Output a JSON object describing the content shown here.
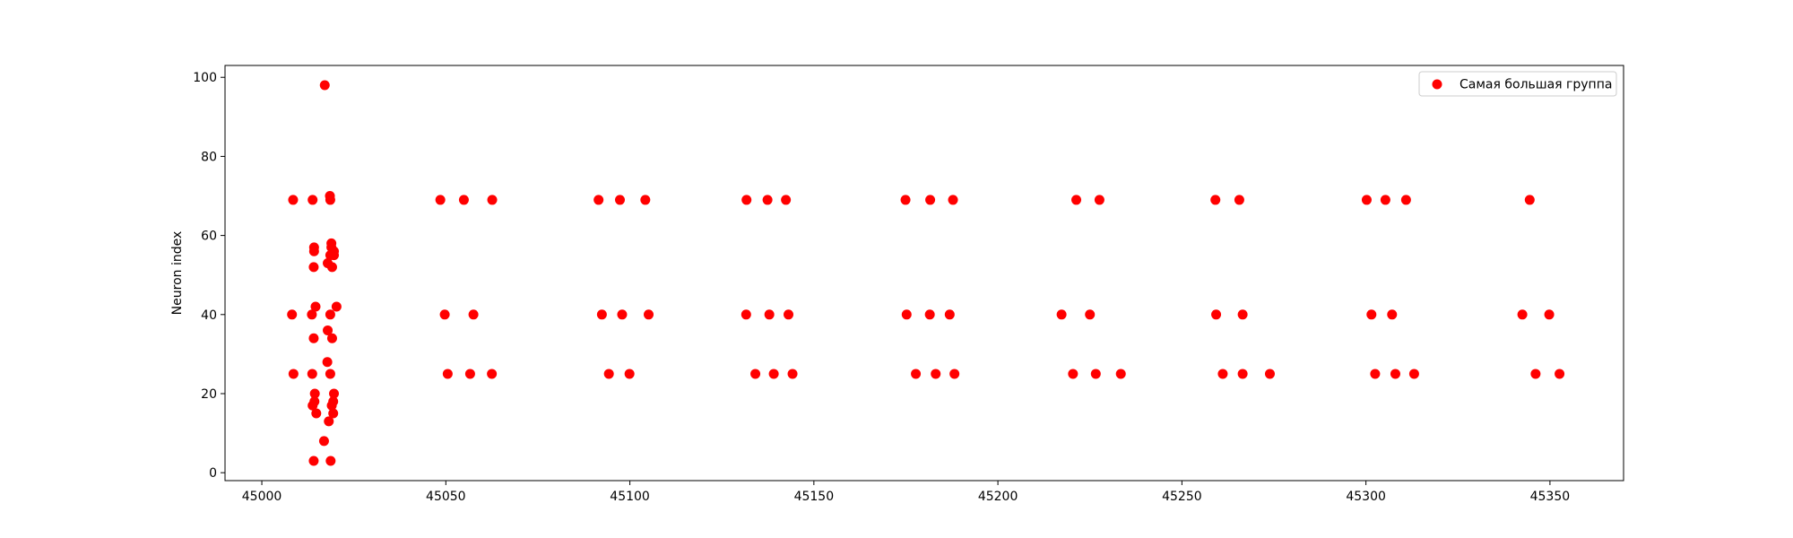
{
  "chart_data": {
    "type": "scatter",
    "title": "",
    "xlabel": "",
    "ylabel": "Neuron index",
    "xlim": [
      44990,
      45370
    ],
    "ylim": [
      -2,
      103
    ],
    "xticks": [
      45000,
      45050,
      45100,
      45150,
      45200,
      45250,
      45300,
      45350
    ],
    "yticks": [
      0,
      20,
      40,
      60,
      80,
      100
    ],
    "grid": false,
    "legend": {
      "position": "top-right",
      "entries": [
        "Самая большая группа"
      ]
    },
    "series": [
      {
        "name": "Самая большая группа",
        "color": "#ff0000",
        "marker": "circle",
        "points": [
          [
            45008.5,
            69
          ],
          [
            45008.2,
            40
          ],
          [
            45008.6,
            25
          ],
          [
            45013.8,
            69
          ],
          [
            45013.6,
            40
          ],
          [
            45013.7,
            25
          ],
          [
            45013.8,
            17
          ],
          [
            45014.1,
            3
          ],
          [
            45014.2,
            57
          ],
          [
            45014.2,
            56
          ],
          [
            45014.1,
            52
          ],
          [
            45014.6,
            42
          ],
          [
            45014.1,
            34
          ],
          [
            45014.4,
            20
          ],
          [
            45014.3,
            18
          ],
          [
            45014.8,
            15
          ],
          [
            45017.1,
            98
          ],
          [
            45016.9,
            8
          ],
          [
            45017.9,
            53
          ],
          [
            45017.9,
            36
          ],
          [
            45017.8,
            28
          ],
          [
            45018.2,
            13
          ],
          [
            45018.5,
            70
          ],
          [
            45018.6,
            69
          ],
          [
            45018.9,
            58
          ],
          [
            45018.9,
            57
          ],
          [
            45018.6,
            55
          ],
          [
            45018.6,
            40
          ],
          [
            45018.6,
            25
          ],
          [
            45019.1,
            52
          ],
          [
            45019.1,
            34
          ],
          [
            45019.0,
            17
          ],
          [
            45018.7,
            3
          ],
          [
            45019.6,
            56
          ],
          [
            45019.6,
            55
          ],
          [
            45019.6,
            20
          ],
          [
            45019.4,
            18
          ],
          [
            45019.4,
            15
          ],
          [
            45020.3,
            42
          ],
          [
            45048.5,
            69
          ],
          [
            45054.9,
            69
          ],
          [
            45062.6,
            69
          ],
          [
            45049.7,
            40
          ],
          [
            45057.5,
            40
          ],
          [
            45050.5,
            25
          ],
          [
            45056.6,
            25
          ],
          [
            45062.5,
            25
          ],
          [
            45091.5,
            69
          ],
          [
            45097.3,
            69
          ],
          [
            45104.2,
            69
          ],
          [
            45092.4,
            40
          ],
          [
            45097.9,
            40
          ],
          [
            45105.1,
            40
          ],
          [
            45094.3,
            25
          ],
          [
            45099.9,
            25
          ],
          [
            45131.7,
            69
          ],
          [
            45137.4,
            69
          ],
          [
            45142.4,
            69
          ],
          [
            45131.6,
            40
          ],
          [
            45137.9,
            40
          ],
          [
            45143.1,
            40
          ],
          [
            45134.1,
            25
          ],
          [
            45139.1,
            25
          ],
          [
            45144.2,
            25
          ],
          [
            45174.9,
            69
          ],
          [
            45181.6,
            69
          ],
          [
            45187.8,
            69
          ],
          [
            45175.2,
            40
          ],
          [
            45181.5,
            40
          ],
          [
            45186.9,
            40
          ],
          [
            45177.7,
            25
          ],
          [
            45183.1,
            25
          ],
          [
            45188.2,
            25
          ],
          [
            45221.3,
            69
          ],
          [
            45227.6,
            69
          ],
          [
            45217.3,
            40
          ],
          [
            45225.0,
            40
          ],
          [
            45220.4,
            25
          ],
          [
            45226.6,
            25
          ],
          [
            45233.4,
            25
          ],
          [
            45259.1,
            69
          ],
          [
            45265.6,
            69
          ],
          [
            45259.3,
            40
          ],
          [
            45266.5,
            40
          ],
          [
            45261.1,
            25
          ],
          [
            45266.5,
            25
          ],
          [
            45273.9,
            25
          ],
          [
            45300.2,
            69
          ],
          [
            45305.3,
            69
          ],
          [
            45310.9,
            69
          ],
          [
            45301.5,
            40
          ],
          [
            45307.1,
            40
          ],
          [
            45302.5,
            25
          ],
          [
            45308.0,
            25
          ],
          [
            45313.1,
            25
          ],
          [
            45344.5,
            69
          ],
          [
            45342.5,
            40
          ],
          [
            45349.8,
            40
          ],
          [
            45346.1,
            25
          ],
          [
            45352.6,
            25
          ]
        ]
      }
    ]
  }
}
